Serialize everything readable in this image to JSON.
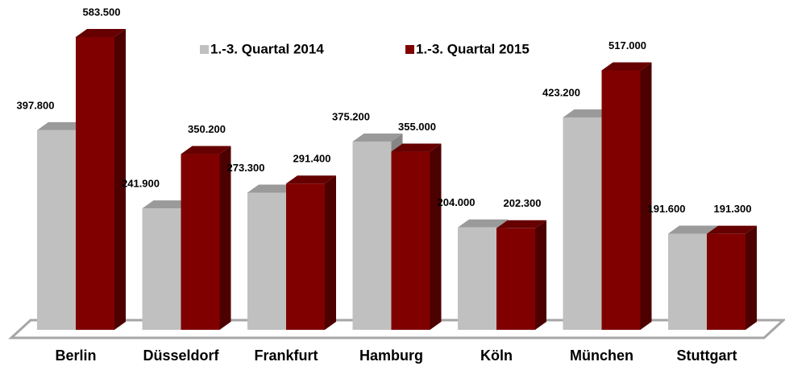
{
  "chart_data": {
    "type": "bar3d",
    "categories": [
      "Berlin",
      "Düsseldorf",
      "Frankfurt",
      "Hamburg",
      "Köln",
      "München",
      "Stuttgart"
    ],
    "series": [
      {
        "name": "1.-3. Quartal 2014",
        "color": "#c0c0c0",
        "values": [
          397800,
          241900,
          273300,
          375200,
          204000,
          423200,
          191600
        ],
        "value_labels": [
          "397.800",
          "241.900",
          "273.300",
          "375.200",
          "204.000",
          "423.200",
          "191.600"
        ]
      },
      {
        "name": "1.-3. Quartal 2015",
        "color": "#800000",
        "values": [
          583500,
          350200,
          291400,
          355000,
          202300,
          517000,
          191300
        ],
        "value_labels": [
          "583.500",
          "350.200",
          "291.400",
          "355.000",
          "202.300",
          "517.000",
          "191.300"
        ]
      }
    ]
  }
}
